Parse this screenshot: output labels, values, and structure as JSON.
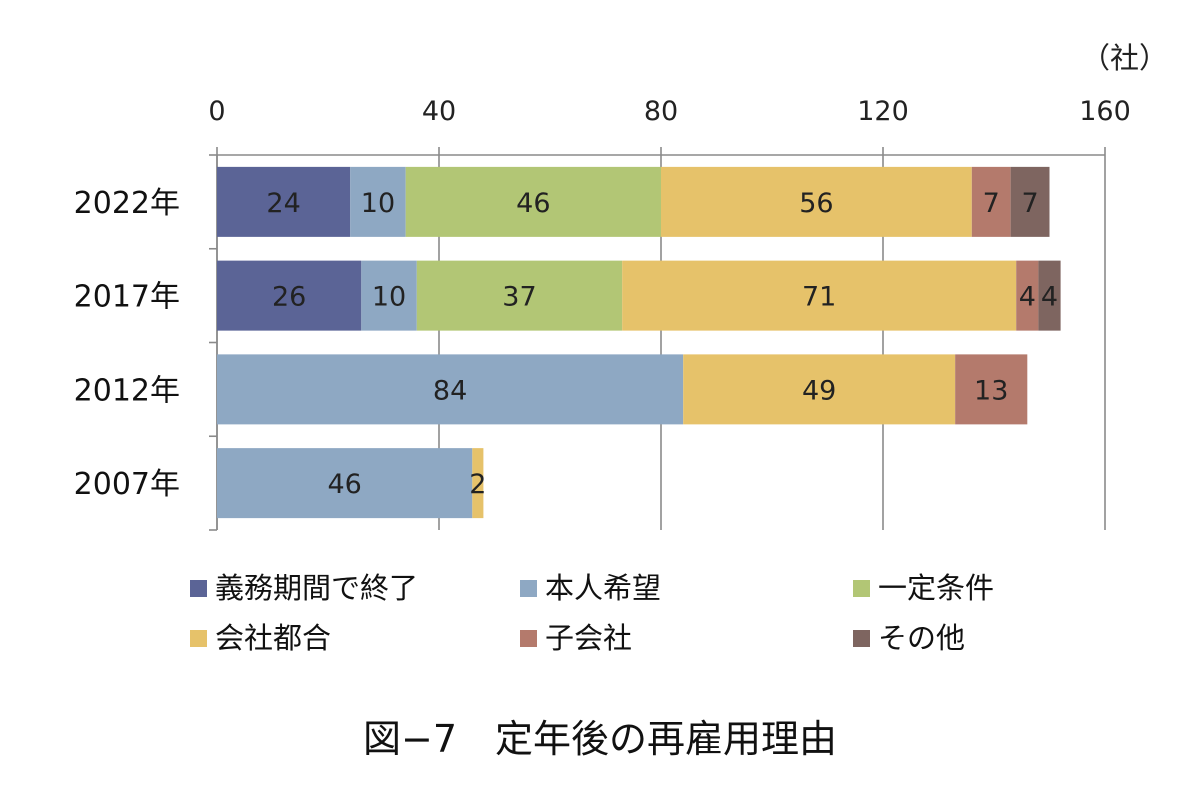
{
  "chart_data": {
    "type": "bar",
    "orientation": "horizontal",
    "stacked": true,
    "unit_label": "（社）",
    "caption": "図−7　定年後の再雇用理由",
    "xlim": [
      0,
      160
    ],
    "x_ticks": [
      0,
      40,
      80,
      120,
      160
    ],
    "grid": true,
    "legend_position": "bottom",
    "categories": [
      "2022年",
      "2017年",
      "2012年",
      "2007年"
    ],
    "series": [
      {
        "name": "義務期間で終了",
        "color": "#5b6496",
        "values": [
          24,
          26,
          0,
          0
        ]
      },
      {
        "name": "本人希望",
        "color": "#8ea8c3",
        "values": [
          10,
          10,
          84,
          46
        ]
      },
      {
        "name": "一定条件",
        "color": "#b2c675",
        "values": [
          46,
          37,
          0,
          0
        ]
      },
      {
        "name": "会社都合",
        "color": "#e6c26a",
        "values": [
          56,
          71,
          49,
          2
        ]
      },
      {
        "name": "子会社",
        "color": "#b47a6c",
        "values": [
          7,
          4,
          13,
          0
        ]
      },
      {
        "name": "その他",
        "color": "#7e6560",
        "values": [
          7,
          4,
          0,
          0
        ]
      }
    ]
  }
}
